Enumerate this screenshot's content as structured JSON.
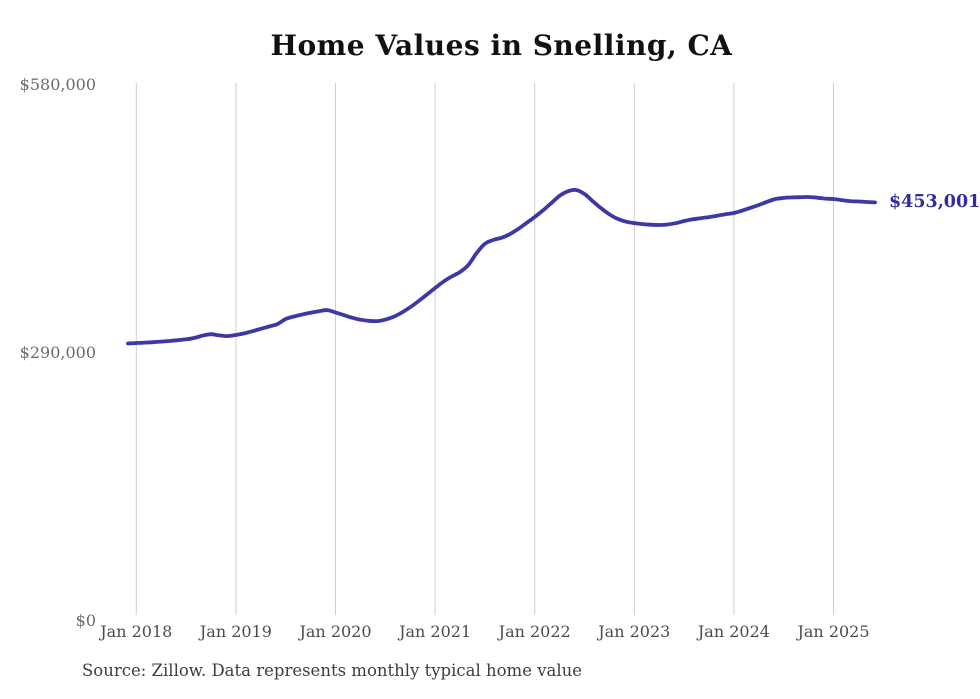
{
  "chart_data": {
    "type": "line",
    "title": "Home Values in Snelling, CA",
    "source_note": "Source: Zillow. Data represents monthly typical home value",
    "end_label": "$453,001",
    "current_value": 453001,
    "ylim": [
      0,
      580000
    ],
    "grid": "vertical-only",
    "legend": "none",
    "colors": {
      "line": "#3e38a6",
      "end_label": "#312c9f",
      "grid": "#cfcfcf",
      "title": "#111111",
      "y_tick": "#6a6a6a",
      "x_tick": "#4c4c4c",
      "source": "#3d3d3d",
      "background": "#ffffff"
    },
    "yticks": [
      {
        "value": 0,
        "label": "$0"
      },
      {
        "value": 290000,
        "label": "$290,000"
      },
      {
        "value": 580000,
        "label": "$580,000"
      }
    ],
    "xticks": [
      "Jan 2018",
      "Jan 2019",
      "Jan 2020",
      "Jan 2021",
      "Jan 2022",
      "Jan 2023",
      "Jan 2024",
      "Jan 2025"
    ],
    "x_months": [
      "2017-12",
      "2018-01",
      "2018-02",
      "2018-03",
      "2018-04",
      "2018-05",
      "2018-06",
      "2018-07",
      "2018-08",
      "2018-09",
      "2018-10",
      "2018-11",
      "2018-12",
      "2019-01",
      "2019-02",
      "2019-03",
      "2019-04",
      "2019-05",
      "2019-06",
      "2019-07",
      "2019-08",
      "2019-09",
      "2019-10",
      "2019-11",
      "2019-12",
      "2020-01",
      "2020-02",
      "2020-03",
      "2020-04",
      "2020-05",
      "2020-06",
      "2020-07",
      "2020-08",
      "2020-09",
      "2020-10",
      "2020-11",
      "2020-12",
      "2021-01",
      "2021-02",
      "2021-03",
      "2021-04",
      "2021-05",
      "2021-06",
      "2021-07",
      "2021-08",
      "2021-09",
      "2021-10",
      "2021-11",
      "2021-12",
      "2022-01",
      "2022-02",
      "2022-03",
      "2022-04",
      "2022-05",
      "2022-06",
      "2022-07",
      "2022-08",
      "2022-09",
      "2022-10",
      "2022-11",
      "2022-12",
      "2023-01",
      "2023-02",
      "2023-03",
      "2023-04",
      "2023-05",
      "2023-06",
      "2023-07",
      "2023-08",
      "2023-09",
      "2023-10",
      "2023-11",
      "2023-12",
      "2024-01",
      "2024-02",
      "2024-03",
      "2024-04",
      "2024-05",
      "2024-06",
      "2024-07",
      "2024-08",
      "2024-09",
      "2024-10",
      "2024-11",
      "2024-12",
      "2025-01",
      "2025-02",
      "2025-03",
      "2025-04",
      "2025-05",
      "2025-06"
    ],
    "series": [
      {
        "name": "Typical home value",
        "values": [
          300300,
          300800,
          301200,
          301700,
          302300,
          303000,
          303900,
          304800,
          306300,
          308800,
          310300,
          309000,
          308300,
          309500,
          311200,
          313600,
          316200,
          318700,
          321300,
          326800,
          329500,
          331700,
          333600,
          335200,
          336400,
          333900,
          331000,
          328200,
          326000,
          324800,
          324500,
          326100,
          329200,
          333800,
          339600,
          346200,
          353200,
          360300,
          367200,
          372800,
          377600,
          385200,
          398100,
          408200,
          412300,
          414700,
          418600,
          424200,
          430600,
          437200,
          444300,
          452200,
          460100,
          465000,
          466400,
          462100,
          454200,
          446600,
          440100,
          435100,
          432100,
          430600,
          429500,
          428800,
          428500,
          429000,
          430500,
          432800,
          434600,
          435900,
          437100,
          438600,
          440100,
          441500,
          444100,
          447100,
          450200,
          453600,
          456600,
          457800,
          458400,
          458600,
          458800,
          458100,
          457100,
          456600,
          455400,
          454400,
          453900,
          453400,
          453001
        ]
      }
    ]
  }
}
